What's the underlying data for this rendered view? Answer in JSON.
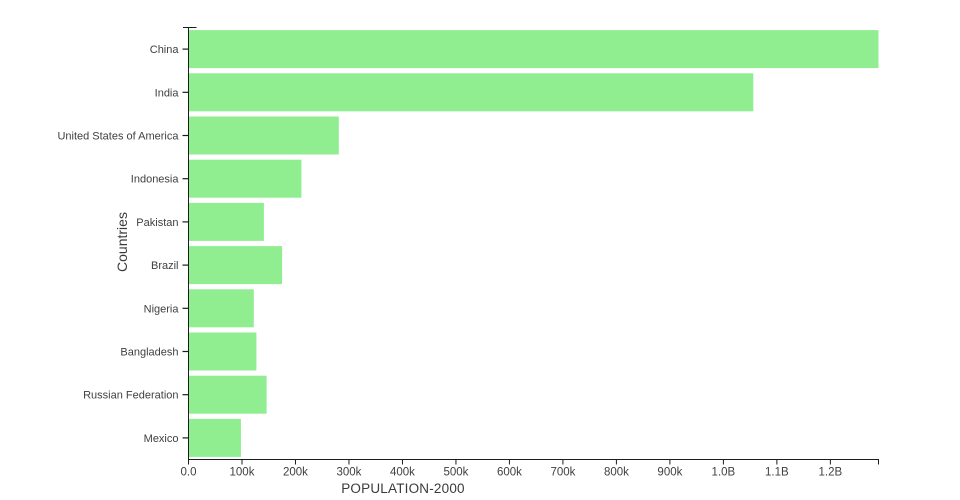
{
  "page": {
    "background": "#ffffff"
  },
  "chart_data": {
    "type": "bar",
    "orientation": "horizontal",
    "title": "",
    "xlabel": "POPULATION-2000",
    "ylabel": "Countries",
    "categories": [
      "China",
      "India",
      "United States of America",
      "Indonesia",
      "Pakistan",
      "Brazil",
      "Nigeria",
      "Bangladesh",
      "Russian Federation",
      "Mexico"
    ],
    "values": [
      1290,
      1056,
      281,
      211,
      141,
      175,
      122,
      127,
      146,
      98
    ],
    "units_note": "values in x-axis tick units (100 = '100k' tick, 1000 = '1.0B' tick)",
    "xlim": [
      0,
      1290
    ],
    "x_ticks": [
      {
        "value": 0,
        "label": "0.0"
      },
      {
        "value": 100,
        "label": "100k"
      },
      {
        "value": 200,
        "label": "200k"
      },
      {
        "value": 300,
        "label": "300k"
      },
      {
        "value": 400,
        "label": "400k"
      },
      {
        "value": 500,
        "label": "500k"
      },
      {
        "value": 600,
        "label": "600k"
      },
      {
        "value": 700,
        "label": "700k"
      },
      {
        "value": 800,
        "label": "800k"
      },
      {
        "value": 900,
        "label": "900k"
      },
      {
        "value": 1000,
        "label": "1.0B"
      },
      {
        "value": 1100,
        "label": "1.1B"
      },
      {
        "value": 1200,
        "label": "1.2B"
      }
    ],
    "grid": false,
    "legend": false,
    "colors": {
      "bar": "#90EE90",
      "axis": "#1c1c1c",
      "tick_label": "#404040",
      "category_label": "#404040",
      "axis_title": "#3a3a3a"
    }
  }
}
